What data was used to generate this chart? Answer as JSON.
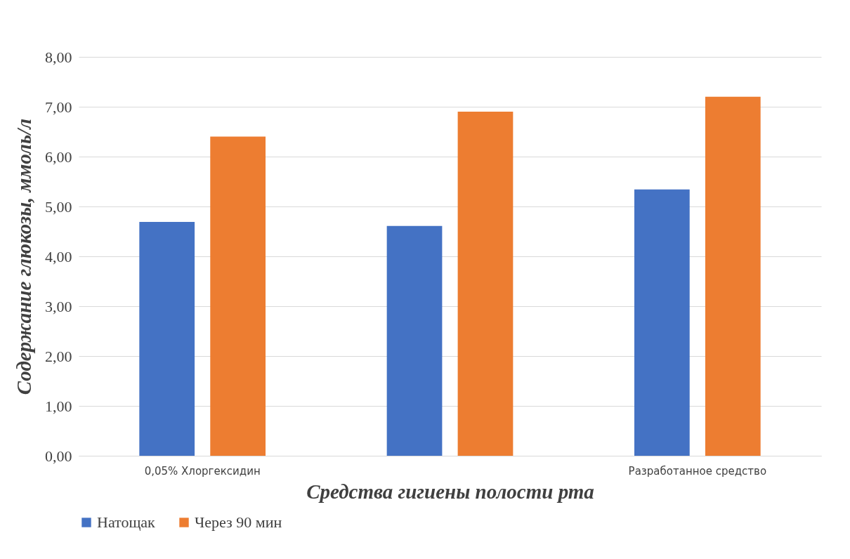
{
  "chart_data": {
    "type": "bar",
    "xlabel": "Средства гигиены полости рта",
    "ylabel": "Содержание глюкозы, ммоль/л",
    "categories": [
      "0,05% Хлоргексидин",
      null,
      "Разработанное средство"
    ],
    "series": [
      {
        "name": "Натощак",
        "color": "#4472c4",
        "values": [
          4.69,
          4.61,
          5.34
        ]
      },
      {
        "name": "Через 90 мин",
        "color": "#ed7d31",
        "values": [
          6.4,
          6.9,
          7.2
        ]
      }
    ],
    "ylim": [
      0,
      8
    ],
    "yticks": [
      {
        "value": 0,
        "label": "0,00"
      },
      {
        "value": 1,
        "label": "1,00"
      },
      {
        "value": 2,
        "label": "2,00"
      },
      {
        "value": 3,
        "label": "3,00"
      },
      {
        "value": 4,
        "label": "4,00"
      },
      {
        "value": 5,
        "label": "5,00"
      },
      {
        "value": 6,
        "label": "6,00"
      },
      {
        "value": 7,
        "label": "7,00"
      },
      {
        "value": 8,
        "label": "8,00"
      }
    ],
    "grid": "y",
    "legend": "bottom"
  }
}
